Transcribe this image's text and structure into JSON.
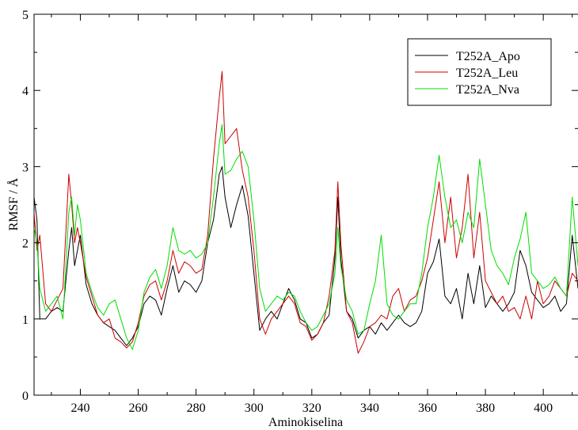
{
  "chart_data": {
    "type": "line",
    "title": "",
    "xlabel": "Aminokiselina",
    "ylabel": "RMSF / Å",
    "xlim": [
      224,
      412
    ],
    "ylim": [
      0,
      5
    ],
    "x_ticks": [
      240,
      260,
      280,
      300,
      320,
      340,
      360,
      380,
      400
    ],
    "x_tick_labels": [
      "240",
      "260",
      "280",
      "300",
      "320",
      "340",
      "360",
      "380",
      "400"
    ],
    "y_ticks": [
      0,
      1,
      2,
      3,
      4,
      5
    ],
    "y_tick_labels": [
      "0",
      "1",
      "2",
      "3",
      "4",
      "5"
    ],
    "grid": false,
    "legend_position": "top-right",
    "series": [
      {
        "name": "T252A_Apo",
        "color": "#000000",
        "points": [
          [
            224,
            2.6
          ],
          [
            225,
            2.3
          ],
          [
            226,
            1.0
          ],
          [
            228,
            1.0
          ],
          [
            230,
            1.1
          ],
          [
            232,
            1.15
          ],
          [
            234,
            1.1
          ],
          [
            236,
            1.9
          ],
          [
            237,
            2.2
          ],
          [
            238,
            1.7
          ],
          [
            239,
            1.9
          ],
          [
            240,
            2.1
          ],
          [
            242,
            1.45
          ],
          [
            244,
            1.2
          ],
          [
            246,
            1.05
          ],
          [
            248,
            0.95
          ],
          [
            250,
            0.9
          ],
          [
            252,
            0.85
          ],
          [
            254,
            0.75
          ],
          [
            256,
            0.65
          ],
          [
            258,
            0.75
          ],
          [
            260,
            0.9
          ],
          [
            262,
            1.2
          ],
          [
            264,
            1.3
          ],
          [
            266,
            1.25
          ],
          [
            268,
            1.05
          ],
          [
            270,
            1.4
          ],
          [
            272,
            1.7
          ],
          [
            274,
            1.35
          ],
          [
            276,
            1.5
          ],
          [
            278,
            1.45
          ],
          [
            280,
            1.35
          ],
          [
            282,
            1.5
          ],
          [
            284,
            2.0
          ],
          [
            286,
            2.3
          ],
          [
            288,
            2.9
          ],
          [
            289,
            3.0
          ],
          [
            290,
            2.6
          ],
          [
            292,
            2.2
          ],
          [
            294,
            2.5
          ],
          [
            296,
            2.75
          ],
          [
            298,
            2.35
          ],
          [
            300,
            1.6
          ],
          [
            302,
            0.85
          ],
          [
            304,
            1.0
          ],
          [
            306,
            1.1
          ],
          [
            308,
            1.0
          ],
          [
            310,
            1.2
          ],
          [
            312,
            1.4
          ],
          [
            314,
            1.25
          ],
          [
            316,
            1.0
          ],
          [
            318,
            0.95
          ],
          [
            320,
            0.75
          ],
          [
            322,
            0.8
          ],
          [
            324,
            0.95
          ],
          [
            326,
            1.05
          ],
          [
            328,
            1.8
          ],
          [
            329,
            2.6
          ],
          [
            330,
            1.8
          ],
          [
            332,
            1.1
          ],
          [
            334,
            1.0
          ],
          [
            336,
            0.75
          ],
          [
            338,
            0.85
          ],
          [
            340,
            0.9
          ],
          [
            342,
            0.8
          ],
          [
            344,
            0.95
          ],
          [
            346,
            0.85
          ],
          [
            348,
            0.95
          ],
          [
            350,
            1.05
          ],
          [
            352,
            0.95
          ],
          [
            354,
            0.9
          ],
          [
            356,
            0.95
          ],
          [
            358,
            1.1
          ],
          [
            360,
            1.6
          ],
          [
            362,
            1.75
          ],
          [
            364,
            2.05
          ],
          [
            366,
            1.3
          ],
          [
            368,
            1.2
          ],
          [
            370,
            1.4
          ],
          [
            372,
            1.0
          ],
          [
            374,
            1.6
          ],
          [
            376,
            1.2
          ],
          [
            378,
            1.7
          ],
          [
            380,
            1.15
          ],
          [
            382,
            1.3
          ],
          [
            384,
            1.2
          ],
          [
            386,
            1.1
          ],
          [
            388,
            1.2
          ],
          [
            390,
            1.35
          ],
          [
            392,
            1.9
          ],
          [
            394,
            1.7
          ],
          [
            396,
            1.35
          ],
          [
            398,
            1.25
          ],
          [
            400,
            1.15
          ],
          [
            402,
            1.2
          ],
          [
            404,
            1.3
          ],
          [
            406,
            1.1
          ],
          [
            408,
            1.2
          ],
          [
            410,
            2.1
          ],
          [
            412,
            1.4
          ]
        ]
      },
      {
        "name": "T252A_Leu",
        "color": "#cc0000",
        "points": [
          [
            224,
            2.4
          ],
          [
            225,
            1.9
          ],
          [
            226,
            2.1
          ],
          [
            228,
            1.2
          ],
          [
            230,
            1.1
          ],
          [
            232,
            1.25
          ],
          [
            234,
            1.4
          ],
          [
            236,
            2.9
          ],
          [
            237,
            2.5
          ],
          [
            238,
            2.0
          ],
          [
            239,
            2.2
          ],
          [
            240,
            2.0
          ],
          [
            242,
            1.55
          ],
          [
            244,
            1.3
          ],
          [
            246,
            1.05
          ],
          [
            248,
            0.95
          ],
          [
            250,
            1.0
          ],
          [
            252,
            0.75
          ],
          [
            254,
            0.7
          ],
          [
            256,
            0.62
          ],
          [
            258,
            0.7
          ],
          [
            260,
            0.95
          ],
          [
            262,
            1.3
          ],
          [
            264,
            1.45
          ],
          [
            266,
            1.5
          ],
          [
            268,
            1.25
          ],
          [
            270,
            1.5
          ],
          [
            272,
            1.9
          ],
          [
            274,
            1.6
          ],
          [
            276,
            1.75
          ],
          [
            278,
            1.7
          ],
          [
            280,
            1.6
          ],
          [
            282,
            1.65
          ],
          [
            284,
            2.1
          ],
          [
            286,
            3.1
          ],
          [
            288,
            3.9
          ],
          [
            289,
            4.25
          ],
          [
            290,
            3.3
          ],
          [
            292,
            3.4
          ],
          [
            294,
            3.5
          ],
          [
            296,
            2.95
          ],
          [
            298,
            2.6
          ],
          [
            300,
            1.9
          ],
          [
            302,
            1.0
          ],
          [
            304,
            0.8
          ],
          [
            306,
            1.0
          ],
          [
            308,
            1.1
          ],
          [
            310,
            1.2
          ],
          [
            312,
            1.3
          ],
          [
            314,
            1.2
          ],
          [
            316,
            0.95
          ],
          [
            318,
            0.9
          ],
          [
            320,
            0.72
          ],
          [
            322,
            0.8
          ],
          [
            324,
            0.95
          ],
          [
            326,
            1.3
          ],
          [
            328,
            1.9
          ],
          [
            329,
            2.8
          ],
          [
            330,
            2.0
          ],
          [
            332,
            1.1
          ],
          [
            334,
            0.95
          ],
          [
            336,
            0.55
          ],
          [
            338,
            0.7
          ],
          [
            340,
            0.9
          ],
          [
            342,
            0.95
          ],
          [
            344,
            1.05
          ],
          [
            346,
            1.0
          ],
          [
            348,
            1.3
          ],
          [
            350,
            1.4
          ],
          [
            352,
            1.1
          ],
          [
            354,
            1.25
          ],
          [
            356,
            1.3
          ],
          [
            358,
            1.5
          ],
          [
            360,
            1.8
          ],
          [
            362,
            2.3
          ],
          [
            364,
            2.8
          ],
          [
            366,
            2.0
          ],
          [
            368,
            2.6
          ],
          [
            370,
            1.8
          ],
          [
            372,
            2.2
          ],
          [
            374,
            2.9
          ],
          [
            376,
            1.8
          ],
          [
            378,
            2.4
          ],
          [
            380,
            1.5
          ],
          [
            382,
            1.35
          ],
          [
            384,
            1.2
          ],
          [
            386,
            1.3
          ],
          [
            388,
            1.1
          ],
          [
            390,
            1.15
          ],
          [
            392,
            1.0
          ],
          [
            394,
            1.3
          ],
          [
            396,
            1.0
          ],
          [
            398,
            1.5
          ],
          [
            400,
            1.2
          ],
          [
            402,
            1.3
          ],
          [
            404,
            1.5
          ],
          [
            406,
            1.4
          ],
          [
            408,
            1.3
          ],
          [
            410,
            1.6
          ],
          [
            412,
            1.5
          ]
        ]
      },
      {
        "name": "T252A_Nva",
        "color": "#00dd00",
        "points": [
          [
            224,
            2.2
          ],
          [
            225,
            2.0
          ],
          [
            226,
            1.4
          ],
          [
            228,
            1.1
          ],
          [
            230,
            1.2
          ],
          [
            232,
            1.3
          ],
          [
            234,
            1.0
          ],
          [
            236,
            2.4
          ],
          [
            237,
            2.6
          ],
          [
            238,
            2.1
          ],
          [
            239,
            2.5
          ],
          [
            240,
            2.3
          ],
          [
            242,
            1.6
          ],
          [
            244,
            1.35
          ],
          [
            246,
            1.15
          ],
          [
            248,
            1.05
          ],
          [
            250,
            1.2
          ],
          [
            252,
            1.25
          ],
          [
            254,
            1.0
          ],
          [
            256,
            0.75
          ],
          [
            258,
            0.6
          ],
          [
            260,
            0.85
          ],
          [
            262,
            1.35
          ],
          [
            264,
            1.55
          ],
          [
            266,
            1.65
          ],
          [
            268,
            1.4
          ],
          [
            270,
            1.7
          ],
          [
            272,
            2.2
          ],
          [
            274,
            1.9
          ],
          [
            276,
            1.85
          ],
          [
            278,
            1.9
          ],
          [
            280,
            1.8
          ],
          [
            282,
            1.85
          ],
          [
            284,
            2.0
          ],
          [
            286,
            2.6
          ],
          [
            288,
            3.3
          ],
          [
            289,
            3.55
          ],
          [
            290,
            2.9
          ],
          [
            292,
            2.95
          ],
          [
            294,
            3.1
          ],
          [
            296,
            3.2
          ],
          [
            298,
            3.0
          ],
          [
            300,
            2.3
          ],
          [
            302,
            1.4
          ],
          [
            304,
            1.1
          ],
          [
            306,
            1.2
          ],
          [
            308,
            1.3
          ],
          [
            310,
            1.25
          ],
          [
            312,
            1.35
          ],
          [
            314,
            1.3
          ],
          [
            316,
            1.1
          ],
          [
            318,
            0.95
          ],
          [
            320,
            0.85
          ],
          [
            322,
            0.9
          ],
          [
            324,
            1.05
          ],
          [
            326,
            1.2
          ],
          [
            328,
            1.6
          ],
          [
            329,
            2.2
          ],
          [
            330,
            1.7
          ],
          [
            332,
            1.25
          ],
          [
            334,
            1.1
          ],
          [
            336,
            0.8
          ],
          [
            338,
            0.85
          ],
          [
            340,
            1.2
          ],
          [
            342,
            1.5
          ],
          [
            344,
            2.1
          ],
          [
            346,
            1.2
          ],
          [
            348,
            1.05
          ],
          [
            350,
            1.0
          ],
          [
            352,
            1.1
          ],
          [
            354,
            1.2
          ],
          [
            356,
            1.2
          ],
          [
            358,
            1.6
          ],
          [
            360,
            2.2
          ],
          [
            362,
            2.6
          ],
          [
            364,
            3.15
          ],
          [
            366,
            2.6
          ],
          [
            368,
            2.2
          ],
          [
            370,
            2.3
          ],
          [
            372,
            2.0
          ],
          [
            374,
            2.4
          ],
          [
            376,
            2.2
          ],
          [
            378,
            3.1
          ],
          [
            380,
            2.5
          ],
          [
            382,
            1.9
          ],
          [
            384,
            1.7
          ],
          [
            386,
            1.6
          ],
          [
            388,
            1.45
          ],
          [
            390,
            1.8
          ],
          [
            392,
            2.05
          ],
          [
            394,
            2.4
          ],
          [
            396,
            1.6
          ],
          [
            398,
            1.5
          ],
          [
            400,
            1.4
          ],
          [
            402,
            1.45
          ],
          [
            404,
            1.55
          ],
          [
            406,
            1.4
          ],
          [
            408,
            1.3
          ],
          [
            410,
            2.6
          ],
          [
            412,
            1.7
          ]
        ]
      }
    ]
  }
}
